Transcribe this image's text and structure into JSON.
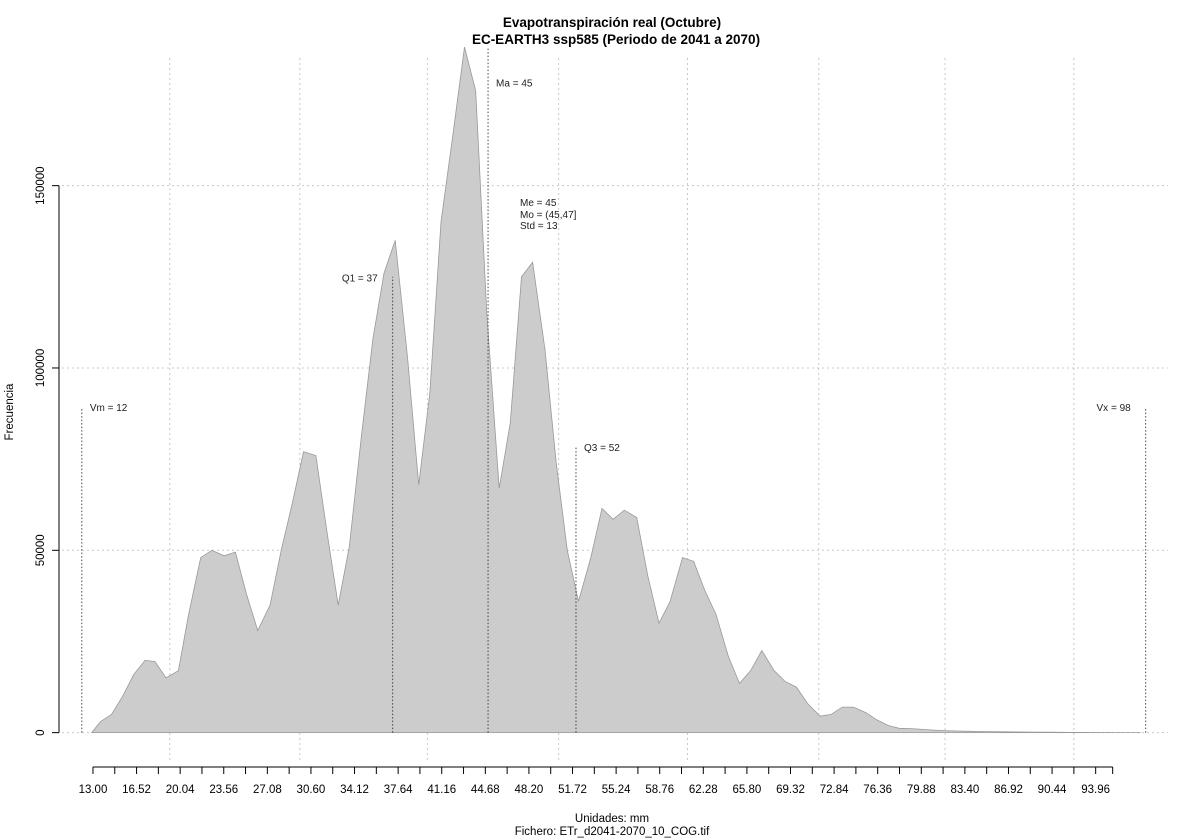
{
  "chart_data": {
    "type": "area",
    "title": "Evapotranspiración real (Octubre)",
    "subtitle": "EC-EARTH3 ssp585 (Periodo de 2041 a 2070)",
    "xlabel": "Unidades: mm",
    "caption": "Fichero: ETr_d2041-2070_10_COG.tif",
    "ylabel": "Frecuencia",
    "xlim": [
      10.5,
      99.8
    ],
    "ylim": [
      -7500,
      185000
    ],
    "grid": true,
    "fill_color": "#cccccc",
    "line_color": "#999999",
    "x_ticks": [
      "13.00",
      "16.52",
      "20.04",
      "23.56",
      "27.08",
      "30.60",
      "34.12",
      "37.64",
      "41.16",
      "44.68",
      "48.20",
      "51.72",
      "55.24",
      "58.76",
      "62.28",
      "65.80",
      "69.32",
      "72.84",
      "76.36",
      "79.88",
      "83.40",
      "86.92",
      "90.44",
      "93.96"
    ],
    "y_ticks": [
      0,
      50000,
      100000,
      150000
    ],
    "y_tick_labels": [
      "0",
      "50000",
      "100000",
      "150000"
    ],
    "x_grid": [
      19.2,
      29.7,
      40.0,
      50.6,
      61.0,
      71.6,
      81.8,
      92.2
    ],
    "series": [
      {
        "x": [
          12.9,
          13.6,
          14.5,
          15.4,
          16.3,
          17.2,
          18.0,
          18.9,
          19.9,
          20.7,
          21.7,
          22.6,
          23.6,
          24.5,
          25.4,
          26.3,
          27.3,
          28.2,
          29.1,
          30.0,
          31.0,
          31.9,
          32.8,
          33.7,
          34.7,
          35.6,
          36.5,
          37.4,
          38.4,
          39.3,
          40.2,
          41.1,
          42.1,
          43.0,
          43.9,
          44.8,
          45.8,
          46.7,
          47.6,
          48.5,
          49.5,
          50.4,
          51.3,
          52.2,
          53.2,
          54.1,
          55.0,
          55.9,
          56.9,
          57.8,
          58.7,
          59.6,
          60.6,
          61.5,
          62.4,
          63.3,
          64.3,
          65.2,
          66.1,
          67.0,
          68.0,
          68.9,
          69.8,
          70.7,
          71.7,
          72.6,
          73.5,
          74.4,
          75.4,
          76.3,
          77.2,
          78.1,
          79.1,
          80.0,
          80.9,
          81.8,
          82.8,
          83.7,
          84.6,
          85.5,
          86.5,
          87.4,
          88.3,
          89.2,
          90.2,
          91.1,
          92.0,
          92.9,
          93.9,
          94.8,
          95.7,
          96.6,
          97.6
        ],
        "values": [
          0,
          3000,
          5000,
          10000,
          16000,
          19800,
          19500,
          15000,
          17000,
          32000,
          48000,
          50000,
          48500,
          49500,
          38000,
          28000,
          35000,
          50000,
          63000,
          77000,
          76000,
          55000,
          35000,
          51000,
          82000,
          108000,
          126000,
          135000,
          103000,
          68000,
          93000,
          140000,
          165000,
          188000,
          176000,
          115000,
          67000,
          85000,
          125000,
          129000,
          105000,
          74000,
          50000,
          36000,
          48000,
          61500,
          58500,
          61000,
          59000,
          43000,
          30000,
          36000,
          48000,
          47000,
          39000,
          32500,
          21000,
          13500,
          17000,
          22500,
          17000,
          14000,
          12500,
          8000,
          4500,
          5000,
          7000,
          7000,
          5500,
          3500,
          2000,
          1200,
          1100,
          900,
          700,
          550,
          450,
          380,
          320,
          280,
          240,
          200,
          170,
          140,
          110,
          90,
          70,
          55,
          40,
          30,
          20,
          15,
          10
        ]
      }
    ],
    "annotations": [
      {
        "label": "Vm = 12",
        "x": 12.1,
        "y_top": 89000,
        "text_side": "right",
        "text_y": 89000
      },
      {
        "label": "Q1 = 37",
        "x": 37.2,
        "y_top": 125000,
        "text_side": "left",
        "text_y": 124500
      },
      {
        "label": "Ma = 45",
        "x": 44.9,
        "y_top": 188000,
        "text_side": "right",
        "text_y": 178000
      },
      {
        "label": "Q3 = 52",
        "x": 52.0,
        "y_top": 78500,
        "text_side": "right",
        "text_y": 78000
      },
      {
        "label": "Vx = 98",
        "x": 98.0,
        "y_top": 89000,
        "text_side": "left",
        "text_y": 89000
      }
    ],
    "stats_block": [
      "Me = 45",
      "Mo = (45,47]",
      "Std = 13"
    ]
  }
}
